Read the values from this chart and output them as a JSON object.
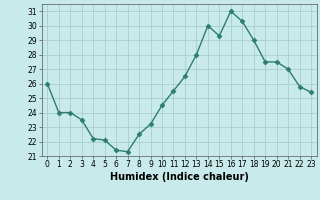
{
  "x": [
    0,
    1,
    2,
    3,
    4,
    5,
    6,
    7,
    8,
    9,
    10,
    11,
    12,
    13,
    14,
    15,
    16,
    17,
    18,
    19,
    20,
    21,
    22,
    23
  ],
  "y": [
    26,
    24,
    24,
    23.5,
    22.2,
    22.1,
    21.4,
    21.3,
    22.5,
    23.2,
    24.5,
    25.5,
    26.5,
    28,
    30,
    29.3,
    31,
    30.3,
    29,
    27.5,
    27.5,
    27,
    25.8,
    25.4
  ],
  "line_color": "#2e7d6e",
  "marker": "D",
  "marker_size": 2.5,
  "line_width": 1.0,
  "bg_color": "#c8eaea",
  "grid_color": "#a0c8c8",
  "xlabel": "Humidex (Indice chaleur)",
  "xlim": [
    -0.5,
    23.5
  ],
  "ylim": [
    21,
    31.5
  ],
  "yticks": [
    21,
    22,
    23,
    24,
    25,
    26,
    27,
    28,
    29,
    30,
    31
  ],
  "xticks": [
    0,
    1,
    2,
    3,
    4,
    5,
    6,
    7,
    8,
    9,
    10,
    11,
    12,
    13,
    14,
    15,
    16,
    17,
    18,
    19,
    20,
    21,
    22,
    23
  ],
  "tick_fontsize": 5.5,
  "label_fontsize": 7.0
}
